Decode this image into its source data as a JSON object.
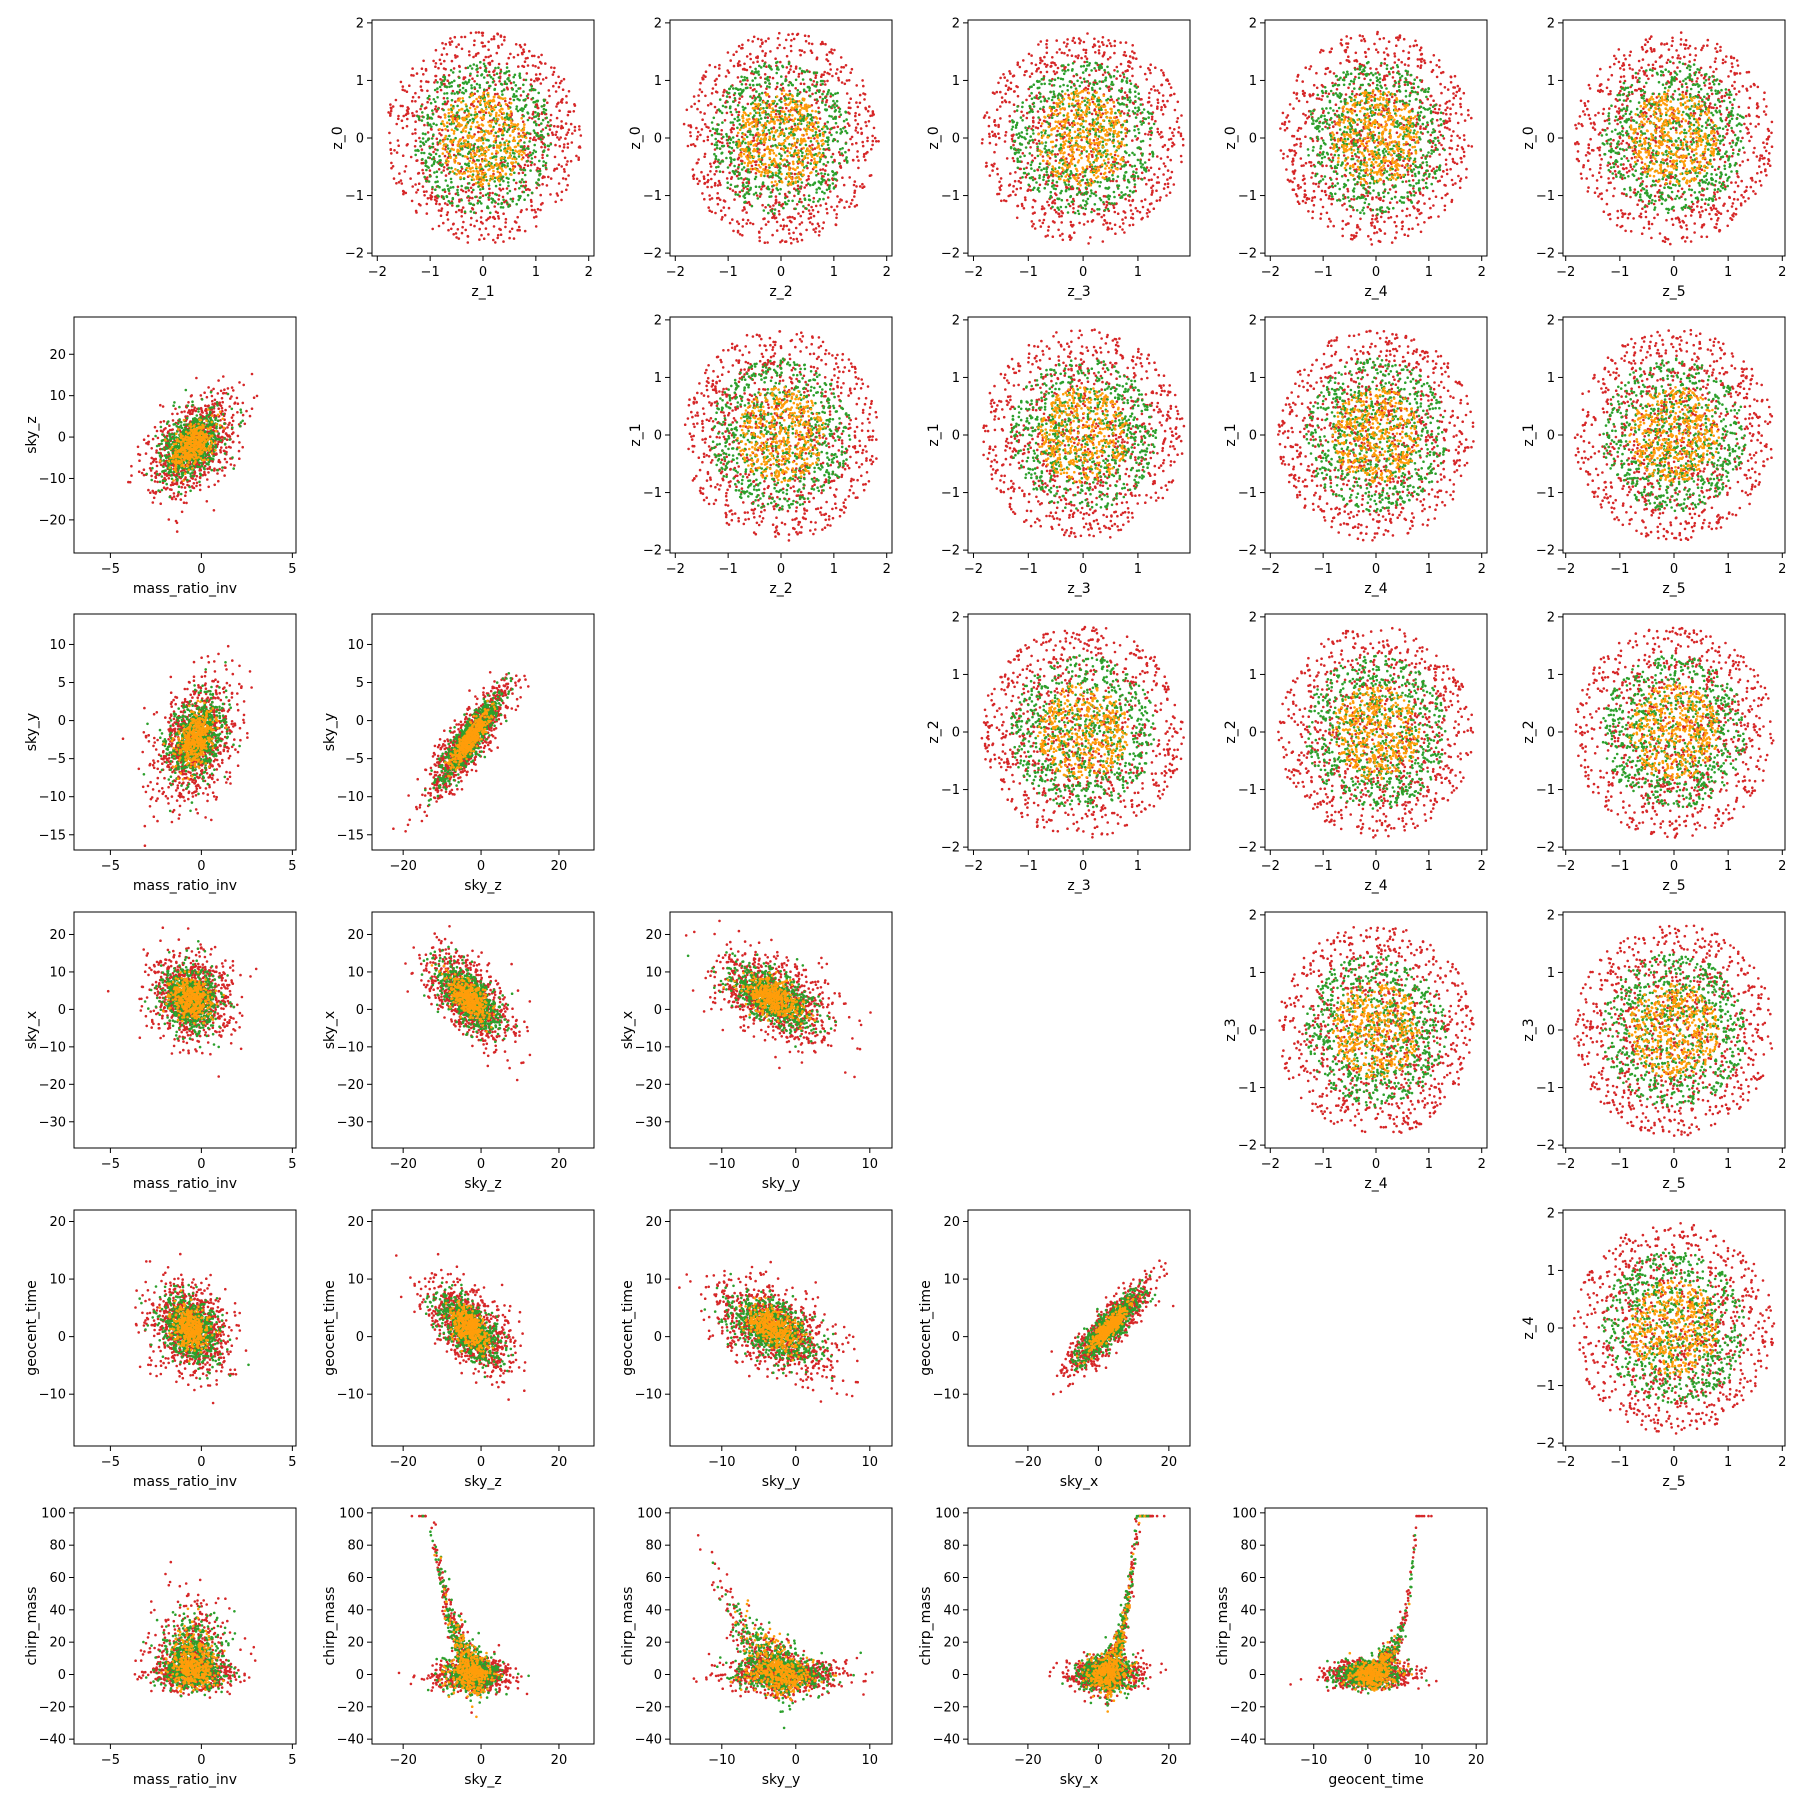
{
  "colors": {
    "red": "#d62728",
    "green": "#2ca02c",
    "orange": "#ff9d0a",
    "frame": "#000000"
  },
  "chart_data": [
    {
      "type": "scatter",
      "xlabel": "z_1",
      "ylabel": "z_0",
      "xlim": [
        -2.1,
        2.1
      ],
      "ylim": [
        -2.05,
        2.05
      ],
      "xticks": [
        -2,
        -1,
        0,
        1,
        2
      ],
      "yticks": [
        -2,
        -1,
        0,
        1,
        2
      ],
      "dist": {
        "kind": "disc",
        "radius": 1.85
      },
      "n_points": [
        900,
        700,
        400
      ]
    },
    {
      "type": "scatter",
      "xlabel": "z_2",
      "ylabel": "z_0",
      "xlim": [
        -2.1,
        2.1
      ],
      "ylim": [
        -2.05,
        2.05
      ],
      "xticks": [
        -2,
        -1,
        0,
        1,
        2
      ],
      "yticks": [
        -2,
        -1,
        0,
        1,
        2
      ],
      "dist": {
        "kind": "disc",
        "radius": 1.85
      },
      "n_points": [
        900,
        700,
        400
      ]
    },
    {
      "type": "scatter",
      "xlabel": "z_3",
      "ylabel": "z_0",
      "xlim": [
        -2.1,
        1.95
      ],
      "ylim": [
        -2.05,
        2.05
      ],
      "xticks": [
        -2,
        -1,
        0,
        1
      ],
      "yticks": [
        -2,
        -1,
        0,
        1,
        2
      ],
      "dist": {
        "kind": "disc",
        "radius": 1.85
      },
      "n_points": [
        900,
        700,
        400
      ]
    },
    {
      "type": "scatter",
      "xlabel": "z_4",
      "ylabel": "z_0",
      "xlim": [
        -2.1,
        2.1
      ],
      "ylim": [
        -2.05,
        2.05
      ],
      "xticks": [
        -2,
        -1,
        0,
        1,
        2
      ],
      "yticks": [
        -2,
        -1,
        0,
        1,
        2
      ],
      "dist": {
        "kind": "disc",
        "radius": 1.85
      },
      "n_points": [
        900,
        700,
        400
      ]
    },
    {
      "type": "scatter",
      "xlabel": "z_5",
      "ylabel": "z_0",
      "xlim": [
        -2.05,
        2.05
      ],
      "ylim": [
        -2.05,
        2.05
      ],
      "xticks": [
        -2,
        -1,
        0,
        1,
        2
      ],
      "yticks": [
        -2,
        -1,
        0,
        1,
        2
      ],
      "dist": {
        "kind": "disc",
        "radius": 1.85
      },
      "n_points": [
        900,
        700,
        400
      ]
    },
    {
      "type": "scatter",
      "xlabel": "mass_ratio_inv",
      "ylabel": "sky_z",
      "xlim": [
        -7,
        5.2
      ],
      "ylim": [
        -28,
        29
      ],
      "xticks": [
        -5,
        0,
        5
      ],
      "yticks": [
        -20,
        -10,
        0,
        10,
        20
      ],
      "dist": {
        "kind": "cloud",
        "cx": -0.5,
        "cy": -2,
        "sx": 1.2,
        "sy": 6,
        "rho": 0.45
      },
      "n_points": [
        900,
        700,
        400
      ]
    },
    {
      "type": "scatter",
      "xlabel": "z_2",
      "ylabel": "z_1",
      "xlim": [
        -2.1,
        2.1
      ],
      "ylim": [
        -2.05,
        2.05
      ],
      "xticks": [
        -2,
        -1,
        0,
        1,
        2
      ],
      "yticks": [
        -2,
        -1,
        0,
        1,
        2
      ],
      "dist": {
        "kind": "disc",
        "radius": 1.85
      },
      "n_points": [
        900,
        700,
        400
      ]
    },
    {
      "type": "scatter",
      "xlabel": "z_3",
      "ylabel": "z_1",
      "xlim": [
        -2.1,
        1.95
      ],
      "ylim": [
        -2.05,
        2.05
      ],
      "xticks": [
        -2,
        -1,
        0,
        1
      ],
      "yticks": [
        -2,
        -1,
        0,
        1,
        2
      ],
      "dist": {
        "kind": "disc",
        "radius": 1.85
      },
      "n_points": [
        900,
        700,
        400
      ]
    },
    {
      "type": "scatter",
      "xlabel": "z_4",
      "ylabel": "z_1",
      "xlim": [
        -2.1,
        2.1
      ],
      "ylim": [
        -2.05,
        2.05
      ],
      "xticks": [
        -2,
        -1,
        0,
        1,
        2
      ],
      "yticks": [
        -2,
        -1,
        0,
        1,
        2
      ],
      "dist": {
        "kind": "disc",
        "radius": 1.85
      },
      "n_points": [
        900,
        700,
        400
      ]
    },
    {
      "type": "scatter",
      "xlabel": "z_5",
      "ylabel": "z_1",
      "xlim": [
        -2.05,
        2.05
      ],
      "ylim": [
        -2.05,
        2.05
      ],
      "xticks": [
        -2,
        -1,
        0,
        1,
        2
      ],
      "yticks": [
        -2,
        -1,
        0,
        1,
        2
      ],
      "dist": {
        "kind": "disc",
        "radius": 1.85
      },
      "n_points": [
        900,
        700,
        400
      ]
    },
    {
      "type": "scatter",
      "xlabel": "mass_ratio_inv",
      "ylabel": "sky_y",
      "xlim": [
        -7,
        5.2
      ],
      "ylim": [
        -17,
        14
      ],
      "xticks": [
        -5,
        0,
        5
      ],
      "yticks": [
        -15,
        -10,
        -5,
        0,
        5,
        10
      ],
      "dist": {
        "kind": "cloud",
        "cx": -0.3,
        "cy": -2.5,
        "sx": 1.1,
        "sy": 4,
        "rho": 0.35
      },
      "n_points": [
        900,
        700,
        400
      ]
    },
    {
      "type": "scatter",
      "xlabel": "sky_z",
      "ylabel": "sky_y",
      "xlim": [
        -28,
        29
      ],
      "ylim": [
        -17,
        14
      ],
      "xticks": [
        -20,
        0,
        20
      ],
      "yticks": [
        -15,
        -10,
        -5,
        0,
        5,
        10
      ],
      "dist": {
        "kind": "cloud",
        "cx": -3,
        "cy": -2.5,
        "sx": 5.5,
        "sy": 4,
        "rho": 0.88
      },
      "n_points": [
        900,
        700,
        400
      ]
    },
    {
      "type": "scatter",
      "xlabel": "z_3",
      "ylabel": "z_2",
      "xlim": [
        -2.1,
        1.95
      ],
      "ylim": [
        -2.05,
        2.05
      ],
      "xticks": [
        -2,
        -1,
        0,
        1
      ],
      "yticks": [
        -2,
        -1,
        0,
        1,
        2
      ],
      "dist": {
        "kind": "disc",
        "radius": 1.85
      },
      "n_points": [
        900,
        700,
        400
      ]
    },
    {
      "type": "scatter",
      "xlabel": "z_4",
      "ylabel": "z_2",
      "xlim": [
        -2.1,
        2.1
      ],
      "ylim": [
        -2.05,
        2.05
      ],
      "xticks": [
        -2,
        -1,
        0,
        1,
        2
      ],
      "yticks": [
        -2,
        -1,
        0,
        1,
        2
      ],
      "dist": {
        "kind": "disc",
        "radius": 1.85
      },
      "n_points": [
        900,
        700,
        400
      ]
    },
    {
      "type": "scatter",
      "xlabel": "z_5",
      "ylabel": "z_2",
      "xlim": [
        -2.05,
        2.05
      ],
      "ylim": [
        -2.05,
        2.05
      ],
      "xticks": [
        -2,
        -1,
        0,
        1,
        2
      ],
      "yticks": [
        -2,
        -1,
        0,
        1,
        2
      ],
      "dist": {
        "kind": "disc",
        "radius": 1.85
      },
      "n_points": [
        900,
        700,
        400
      ]
    },
    {
      "type": "scatter",
      "xlabel": "mass_ratio_inv",
      "ylabel": "sky_x",
      "xlim": [
        -7,
        5.2
      ],
      "ylim": [
        -37,
        26
      ],
      "xticks": [
        -5,
        0,
        5
      ],
      "yticks": [
        -30,
        -20,
        -10,
        0,
        10,
        20
      ],
      "dist": {
        "kind": "cloud",
        "cx": -0.6,
        "cy": 3,
        "sx": 1.1,
        "sy": 6,
        "rho": -0.15
      },
      "n_points": [
        900,
        700,
        400
      ]
    },
    {
      "type": "scatter",
      "xlabel": "sky_z",
      "ylabel": "sky_x",
      "xlim": [
        -28,
        29
      ],
      "ylim": [
        -37,
        26
      ],
      "xticks": [
        -20,
        0,
        20
      ],
      "yticks": [
        -30,
        -20,
        -10,
        0,
        10,
        20
      ],
      "dist": {
        "kind": "cloud",
        "cx": -3,
        "cy": 3,
        "sx": 5.5,
        "sy": 6,
        "rho": -0.6
      },
      "n_points": [
        900,
        700,
        400
      ]
    },
    {
      "type": "scatter",
      "xlabel": "sky_y",
      "ylabel": "sky_x",
      "xlim": [
        -17,
        13
      ],
      "ylim": [
        -37,
        26
      ],
      "xticks": [
        -10,
        0,
        10
      ],
      "yticks": [
        -30,
        -20,
        -10,
        0,
        10,
        20
      ],
      "dist": {
        "kind": "cloud",
        "cx": -3,
        "cy": 3,
        "sx": 4,
        "sy": 6,
        "rho": -0.5
      },
      "n_points": [
        900,
        700,
        400
      ]
    },
    {
      "type": "scatter",
      "xlabel": "z_4",
      "ylabel": "z_3",
      "xlim": [
        -2.1,
        2.1
      ],
      "ylim": [
        -2.05,
        2.05
      ],
      "xticks": [
        -2,
        -1,
        0,
        1,
        2
      ],
      "yticks": [
        -2,
        -1,
        0,
        1,
        2
      ],
      "dist": {
        "kind": "disc",
        "radius": 1.85
      },
      "n_points": [
        900,
        700,
        400
      ]
    },
    {
      "type": "scatter",
      "xlabel": "z_5",
      "ylabel": "z_3",
      "xlim": [
        -2.05,
        2.05
      ],
      "ylim": [
        -2.05,
        2.05
      ],
      "xticks": [
        -2,
        -1,
        0,
        1,
        2
      ],
      "yticks": [
        -2,
        -1,
        0,
        1,
        2
      ],
      "dist": {
        "kind": "disc",
        "radius": 1.85
      },
      "n_points": [
        900,
        700,
        400
      ]
    },
    {
      "type": "scatter",
      "xlabel": "mass_ratio_inv",
      "ylabel": "geocent_time",
      "xlim": [
        -7,
        5.2
      ],
      "ylim": [
        -19,
        22
      ],
      "xticks": [
        -5,
        0,
        5
      ],
      "yticks": [
        -10,
        0,
        10,
        20
      ],
      "dist": {
        "kind": "cloud",
        "cx": -0.6,
        "cy": 1.5,
        "sx": 1.1,
        "sy": 4,
        "rho": -0.25
      },
      "n_points": [
        900,
        700,
        400
      ]
    },
    {
      "type": "scatter",
      "xlabel": "sky_z",
      "ylabel": "geocent_time",
      "xlim": [
        -28,
        29
      ],
      "ylim": [
        -19,
        22
      ],
      "xticks": [
        -20,
        0,
        20
      ],
      "yticks": [
        -10,
        0,
        10,
        20
      ],
      "dist": {
        "kind": "cloud",
        "cx": -3,
        "cy": 1.5,
        "sx": 5.5,
        "sy": 4,
        "rho": -0.6
      },
      "n_points": [
        900,
        700,
        400
      ]
    },
    {
      "type": "scatter",
      "xlabel": "sky_y",
      "ylabel": "geocent_time",
      "xlim": [
        -17,
        13
      ],
      "ylim": [
        -19,
        22
      ],
      "xticks": [
        -10,
        0,
        10
      ],
      "yticks": [
        -10,
        0,
        10,
        20
      ],
      "dist": {
        "kind": "cloud",
        "cx": -3,
        "cy": 1.5,
        "sx": 4,
        "sy": 4,
        "rho": -0.5
      },
      "n_points": [
        900,
        700,
        400
      ]
    },
    {
      "type": "scatter",
      "xlabel": "sky_x",
      "ylabel": "geocent_time",
      "xlim": [
        -37,
        26
      ],
      "ylim": [
        -19,
        22
      ],
      "xticks": [
        -20,
        0,
        20
      ],
      "yticks": [
        -10,
        0,
        10,
        20
      ],
      "dist": {
        "kind": "cloud",
        "cx": 3,
        "cy": 1.5,
        "sx": 6,
        "sy": 4,
        "rho": 0.88
      },
      "n_points": [
        900,
        700,
        400
      ]
    },
    {
      "type": "scatter",
      "xlabel": "z_5",
      "ylabel": "z_4",
      "xlim": [
        -2.05,
        2.05
      ],
      "ylim": [
        -2.05,
        2.05
      ],
      "xticks": [
        -2,
        -1,
        0,
        1,
        2
      ],
      "yticks": [
        -2,
        -1,
        0,
        1,
        2
      ],
      "dist": {
        "kind": "disc",
        "radius": 1.85
      },
      "n_points": [
        900,
        700,
        400
      ]
    },
    {
      "type": "scatter",
      "xlabel": "mass_ratio_inv",
      "ylabel": "chirp_mass",
      "xlim": [
        -7,
        5.2
      ],
      "ylim": [
        -43,
        103
      ],
      "xticks": [
        -5,
        0,
        5
      ],
      "yticks": [
        -40,
        -20,
        0,
        20,
        40,
        60,
        80,
        100
      ],
      "dist": {
        "kind": "chirp",
        "base": "mri"
      },
      "n_points": [
        900,
        700,
        400
      ]
    },
    {
      "type": "scatter",
      "xlabel": "sky_z",
      "ylabel": "chirp_mass",
      "xlim": [
        -28,
        29
      ],
      "ylim": [
        -43,
        103
      ],
      "xticks": [
        -20,
        0,
        20
      ],
      "yticks": [
        -40,
        -20,
        0,
        20,
        40,
        60,
        80,
        100
      ],
      "dist": {
        "kind": "chirp",
        "base": "skyz"
      },
      "n_points": [
        900,
        700,
        400
      ]
    },
    {
      "type": "scatter",
      "xlabel": "sky_y",
      "ylabel": "chirp_mass",
      "xlim": [
        -17,
        13
      ],
      "ylim": [
        -43,
        103
      ],
      "xticks": [
        -10,
        0,
        10
      ],
      "yticks": [
        -40,
        -20,
        0,
        20,
        40,
        60,
        80,
        100
      ],
      "dist": {
        "kind": "chirp",
        "base": "skyy"
      },
      "n_points": [
        900,
        700,
        400
      ]
    },
    {
      "type": "scatter",
      "xlabel": "sky_x",
      "ylabel": "chirp_mass",
      "xlim": [
        -37,
        26
      ],
      "ylim": [
        -43,
        103
      ],
      "xticks": [
        -20,
        0,
        20
      ],
      "yticks": [
        -40,
        -20,
        0,
        20,
        40,
        60,
        80,
        100
      ],
      "dist": {
        "kind": "chirp",
        "base": "skyx"
      },
      "n_points": [
        900,
        700,
        400
      ]
    },
    {
      "type": "scatter",
      "xlabel": "geocent_time",
      "ylabel": "chirp_mass",
      "xlim": [
        -19,
        22
      ],
      "ylim": [
        -43,
        103
      ],
      "xticks": [
        -10,
        0,
        10,
        20
      ],
      "yticks": [
        -40,
        -20,
        0,
        20,
        40,
        60,
        80,
        100
      ],
      "dist": {
        "kind": "chirp",
        "base": "geo"
      },
      "n_points": [
        900,
        700,
        400
      ]
    }
  ]
}
